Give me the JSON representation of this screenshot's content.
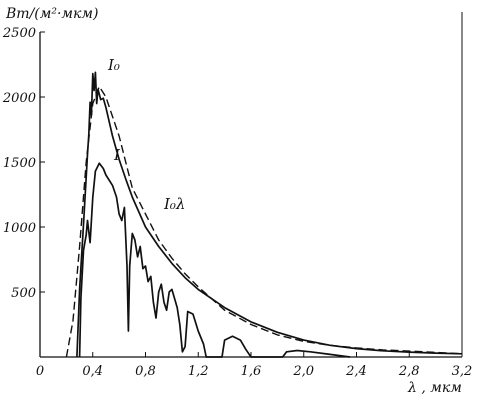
{
  "chart_data": {
    "type": "line",
    "ylabel": "Вт/(м²·мкм)",
    "xlabel": "λ , мкм",
    "xlim": [
      0,
      3.2
    ],
    "ylim": [
      0,
      2500
    ],
    "x_ticks": [
      "0",
      "0,4",
      "0,8",
      "1,2",
      "1,6",
      "2,0",
      "2,4",
      "2,8",
      "3,2"
    ],
    "y_ticks": [
      "500",
      "1000",
      "1500",
      "2000",
      "2500"
    ],
    "grid": false,
    "series": [
      {
        "name": "I₀λ",
        "style": "dashed",
        "color": "#111111",
        "points": [
          [
            0.2,
            0
          ],
          [
            0.25,
            280
          ],
          [
            0.3,
            850
          ],
          [
            0.35,
            1500
          ],
          [
            0.4,
            1950
          ],
          [
            0.45,
            2080
          ],
          [
            0.5,
            2000
          ],
          [
            0.55,
            1850
          ],
          [
            0.6,
            1700
          ],
          [
            0.65,
            1500
          ],
          [
            0.7,
            1300
          ],
          [
            0.8,
            1100
          ],
          [
            0.9,
            900
          ],
          [
            1.0,
            760
          ],
          [
            1.1,
            640
          ],
          [
            1.2,
            540
          ],
          [
            1.4,
            360
          ],
          [
            1.6,
            250
          ],
          [
            1.8,
            170
          ],
          [
            2.0,
            120
          ],
          [
            2.2,
            90
          ],
          [
            2.4,
            70
          ],
          [
            2.6,
            55
          ],
          [
            2.8,
            45
          ],
          [
            3.0,
            35
          ],
          [
            3.2,
            25
          ]
        ]
      },
      {
        "name": "I₀",
        "style": "solid",
        "color": "#111111",
        "points": [
          [
            0.28,
            0
          ],
          [
            0.3,
            520
          ],
          [
            0.33,
            1020
          ],
          [
            0.36,
            1560
          ],
          [
            0.37,
            1710
          ],
          [
            0.38,
            1960
          ],
          [
            0.39,
            1860
          ],
          [
            0.4,
            2180
          ],
          [
            0.41,
            2050
          ],
          [
            0.42,
            2190
          ],
          [
            0.43,
            1950
          ],
          [
            0.44,
            2060
          ],
          [
            0.46,
            1980
          ],
          [
            0.48,
            1990
          ],
          [
            0.5,
            1920
          ],
          [
            0.52,
            1830
          ],
          [
            0.55,
            1700
          ],
          [
            0.6,
            1520
          ],
          [
            0.65,
            1370
          ],
          [
            0.7,
            1230
          ],
          [
            0.8,
            1000
          ],
          [
            0.9,
            850
          ],
          [
            1.0,
            720
          ],
          [
            1.1,
            610
          ],
          [
            1.2,
            520
          ],
          [
            1.4,
            380
          ],
          [
            1.6,
            270
          ],
          [
            1.8,
            190
          ],
          [
            2.0,
            130
          ],
          [
            2.2,
            90
          ],
          [
            2.4,
            65
          ],
          [
            2.6,
            48
          ],
          [
            2.8,
            38
          ],
          [
            3.0,
            30
          ],
          [
            3.2,
            25
          ]
        ]
      },
      {
        "name": "I",
        "style": "solid",
        "color": "#111111",
        "points": [
          [
            0.3,
            0
          ],
          [
            0.31,
            450
          ],
          [
            0.33,
            820
          ],
          [
            0.35,
            940
          ],
          [
            0.36,
            1050
          ],
          [
            0.38,
            880
          ],
          [
            0.4,
            1230
          ],
          [
            0.42,
            1430
          ],
          [
            0.45,
            1490
          ],
          [
            0.48,
            1450
          ],
          [
            0.5,
            1400
          ],
          [
            0.55,
            1320
          ],
          [
            0.58,
            1230
          ],
          [
            0.6,
            1100
          ],
          [
            0.62,
            1050
          ],
          [
            0.64,
            1150
          ],
          [
            0.66,
            700
          ],
          [
            0.67,
            200
          ],
          [
            0.68,
            700
          ],
          [
            0.7,
            950
          ],
          [
            0.72,
            900
          ],
          [
            0.74,
            770
          ],
          [
            0.76,
            850
          ],
          [
            0.78,
            680
          ],
          [
            0.8,
            700
          ],
          [
            0.82,
            580
          ],
          [
            0.84,
            620
          ],
          [
            0.86,
            420
          ],
          [
            0.88,
            300
          ],
          [
            0.9,
            500
          ],
          [
            0.92,
            560
          ],
          [
            0.94,
            420
          ],
          [
            0.96,
            360
          ],
          [
            0.98,
            500
          ],
          [
            1.0,
            520
          ],
          [
            1.04,
            380
          ],
          [
            1.06,
            250
          ],
          [
            1.08,
            40
          ],
          [
            1.1,
            80
          ],
          [
            1.12,
            350
          ],
          [
            1.16,
            330
          ],
          [
            1.2,
            200
          ],
          [
            1.24,
            100
          ],
          [
            1.26,
            0
          ],
          [
            1.38,
            0
          ],
          [
            1.4,
            130
          ],
          [
            1.46,
            160
          ],
          [
            1.52,
            130
          ],
          [
            1.56,
            60
          ],
          [
            1.6,
            0
          ],
          [
            1.84,
            0
          ],
          [
            1.87,
            40
          ],
          [
            1.95,
            50
          ],
          [
            2.05,
            40
          ],
          [
            2.2,
            20
          ],
          [
            2.35,
            0
          ]
        ]
      }
    ],
    "annotations": [
      {
        "text": "I₀",
        "target": "I₀"
      },
      {
        "text": "I",
        "target": "I"
      },
      {
        "text": "I₀λ",
        "target": "I₀λ"
      }
    ]
  }
}
